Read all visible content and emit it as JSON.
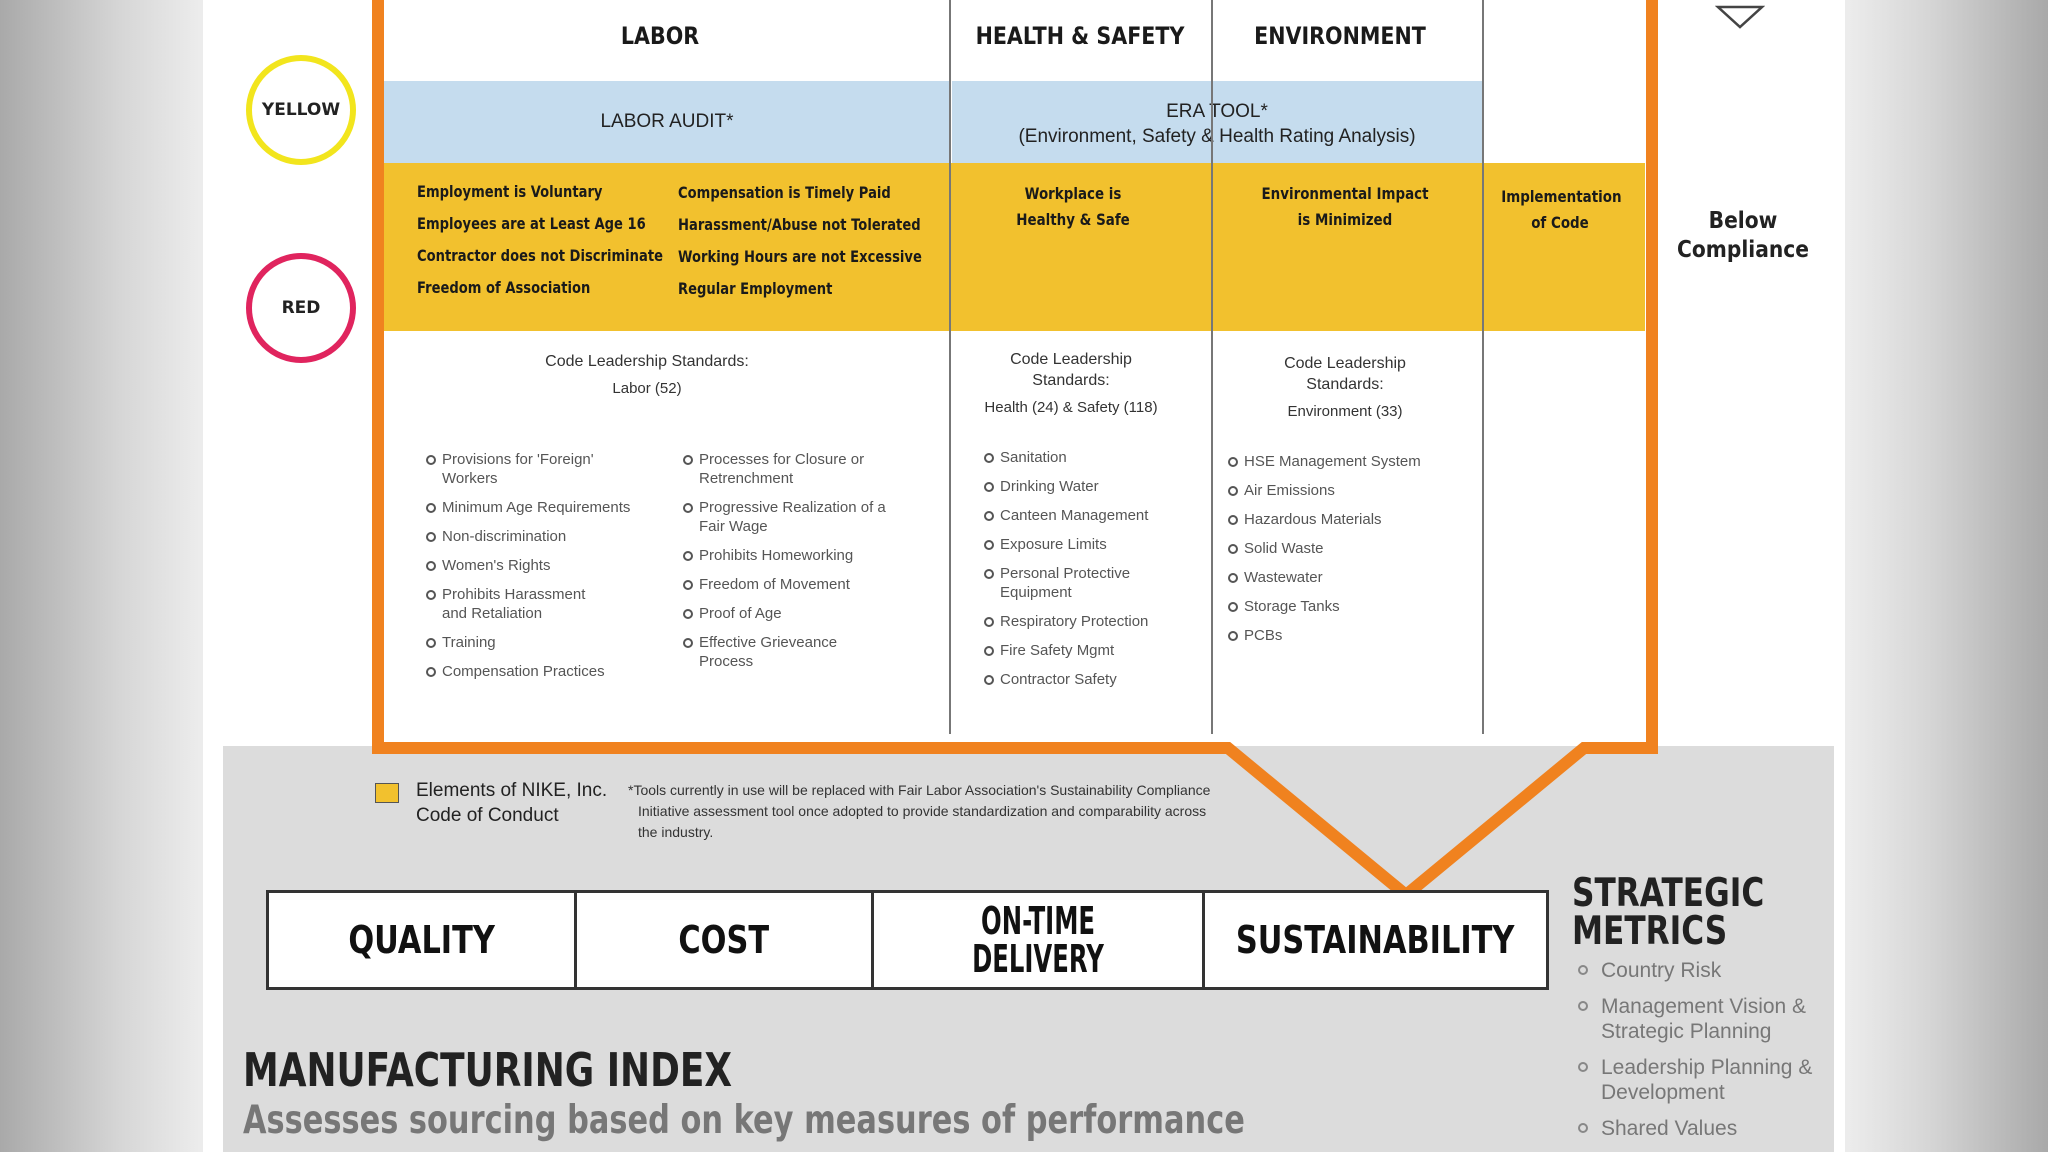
{
  "legend_levels": {
    "yellow": "YELLOW",
    "red": "RED"
  },
  "headers": {
    "labor": "LABOR",
    "health_safety": "HEALTH & SAFETY",
    "environment": "ENVIRONMENT"
  },
  "tools": {
    "labor_audit": "LABOR AUDIT*",
    "era_tool_line1": "ERA TOOL*",
    "era_tool_line2": "(Environment, Safety & Health Rating Analysis)"
  },
  "code_elements": {
    "labor_col1": [
      "Employment is Voluntary",
      "Employees are at Least Age 16",
      "Contractor does not Discriminate",
      "Freedom of Association"
    ],
    "labor_col2": [
      "Compensation is Timely Paid",
      "Harassment/Abuse not Tolerated",
      "Working Hours are not Excessive",
      "Regular Employment"
    ],
    "health_safety": [
      "Workplace is",
      "Healthy & Safe"
    ],
    "environment": [
      "Environmental Impact",
      "is Minimized"
    ],
    "implementation": [
      "Implementation",
      "of Code"
    ]
  },
  "below_compliance": [
    "Below",
    "Compliance"
  ],
  "standards": {
    "labor_title": "Code Leadership Standards:",
    "labor_sub": "Labor (52)",
    "hs_title_1": "Code Leadership",
    "hs_title_2": "Standards:",
    "hs_sub": "Health (24) & Safety (118)",
    "env_title_1": "Code Leadership",
    "env_title_2": "Standards:",
    "env_sub": "Environment (33)"
  },
  "labor_list_col1": [
    "Provisions for 'Foreign' Workers",
    "Minimum Age Requirements",
    "Non-discrimination",
    "Women's Rights",
    "Prohibits Harassment and Retaliation",
    "Training",
    "Compensation Practices"
  ],
  "labor_list_col2": [
    "Processes for Closure or Retrenchment",
    "Progressive Realization of a Fair Wage",
    "Prohibits Homeworking",
    "Freedom of Movement",
    "Proof of Age",
    "Effective Grieveance Process"
  ],
  "hs_list": [
    "Sanitation",
    "Drinking Water",
    "Canteen Management",
    "Exposure Limits",
    "Personal Protective Equipment",
    "Respiratory Protection",
    "Fire Safety Mgmt",
    "Contractor Safety"
  ],
  "env_list": [
    "HSE Management System",
    "Air Emissions",
    "Hazardous Materials",
    "Solid Waste",
    "Wastewater",
    "Storage Tanks",
    "PCBs"
  ],
  "legend": {
    "swatch_label_1": "Elements of NIKE, Inc.",
    "swatch_label_2": "Code of Conduct",
    "footnote_1": "*Tools currently in use will be replaced with Fair Labor Association's Sustainability Compliance",
    "footnote_2": "Initiative assessment tool once adopted to provide standardization and comparability across",
    "footnote_3": "the industry."
  },
  "metrics": {
    "quality": "QUALITY",
    "cost": "COST",
    "ontime_1": "ON-TIME",
    "ontime_2": "DELIVERY",
    "sustainability": "SUSTAINABILITY"
  },
  "strategic": {
    "title_1": "STRATEGIC",
    "title_2": "METRICS",
    "items": [
      "Country Risk",
      "Management Vision & Strategic Planning",
      "Leadership Planning & Development",
      "Shared Values"
    ]
  },
  "index": {
    "title": "MANUFACTURING INDEX",
    "subtitle": "Assesses sourcing based on key measures of performance"
  },
  "colors": {
    "orange": "#f0821f",
    "yellow": "#f2c12e",
    "blue": "#c5dcee",
    "red_ring": "#e0245e",
    "yellow_ring": "#f2e51d"
  }
}
